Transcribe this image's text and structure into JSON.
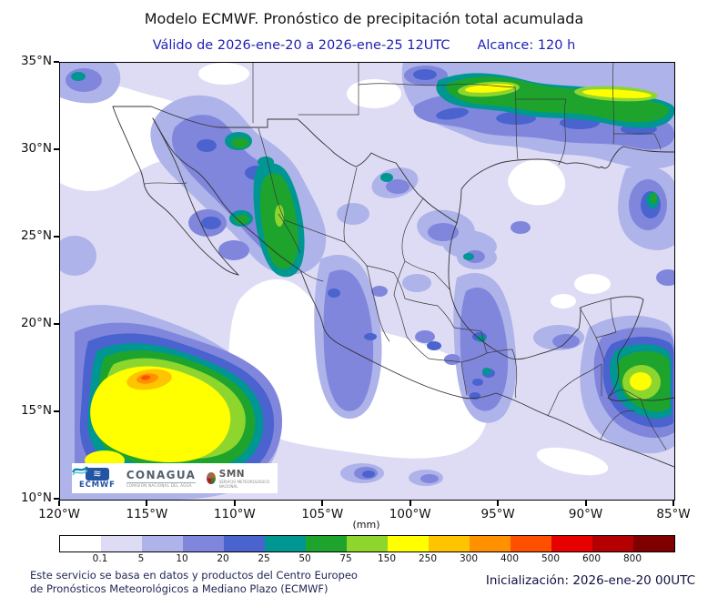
{
  "title": "Modelo ECMWF. Pronóstico de precipitación total acumulada",
  "subtitle": {
    "valid": "Válido de 2026-ene-20 a 2026-ene-25 12UTC",
    "range": "Alcance: 120 h"
  },
  "map": {
    "lat_labels": [
      "35°N",
      "30°N",
      "25°N",
      "20°N",
      "15°N",
      "10°N"
    ],
    "lon_labels": [
      "120°W",
      "115°W",
      "110°W",
      "105°W",
      "100°W",
      "95°W",
      "90°W",
      "85°W"
    ]
  },
  "logos": {
    "ecmwf_label": "ECMWF",
    "conagua_label": "CONAGUA",
    "conagua_sub": "COMISIÓN NACIONAL DEL AGUA",
    "smn_label": "SMN",
    "smn_sub": "SERVICIO METEOROLÓGICO NACIONAL"
  },
  "legend": {
    "units": "(mm)",
    "ticks": [
      "0.1",
      "5",
      "10",
      "20",
      "25",
      "50",
      "75",
      "150",
      "250",
      "300",
      "400",
      "500",
      "600",
      "800"
    ],
    "colors": [
      "#ffffff",
      "#dedcf5",
      "#aeb3e9",
      "#8186dd",
      "#4a63cf",
      "#009692",
      "#1ea42c",
      "#8ed62e",
      "#ffff00",
      "#ffc400",
      "#ff9000",
      "#ff5000",
      "#e60000",
      "#b40000",
      "#7e0000"
    ]
  },
  "footer": {
    "line1": "Este servicio se basa en datos y productos del Centro Europeo",
    "line2": "de Pronósticos Meteorológicos a Mediano Plazo (ECMWF)",
    "initialization": "Inicialización: 2026-ene-20 00UTC"
  }
}
